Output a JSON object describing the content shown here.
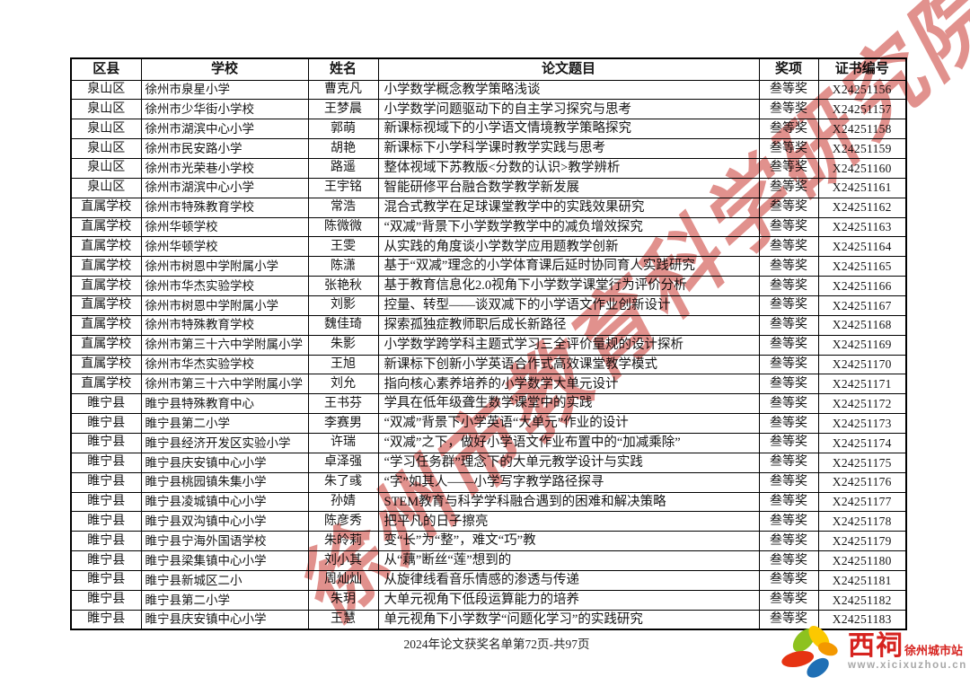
{
  "page": {
    "footer": "2024年论文获奖名单第72页-共97页"
  },
  "watermark": {
    "text": "徐州市教育科学研究院",
    "color": "#c4231c"
  },
  "logo": {
    "brand": "西祠",
    "site": "徐州城市站",
    "url": "www.xicixuzhou.cn",
    "petal_colors": [
      "#8dc21f",
      "#fcc800",
      "#f39800",
      "#e63312",
      "#1f6fb5"
    ]
  },
  "table": {
    "columns": [
      {
        "key": "district",
        "label": "区县"
      },
      {
        "key": "school",
        "label": "学校"
      },
      {
        "key": "name",
        "label": "姓名"
      },
      {
        "key": "title",
        "label": "论文题目"
      },
      {
        "key": "award",
        "label": "奖项"
      },
      {
        "key": "cert",
        "label": "证书编号"
      }
    ],
    "rows": [
      {
        "district": "泉山区",
        "school": "徐州市泉星小学",
        "name": "曹克凡",
        "title": "小学数学概念教学策略浅谈",
        "award": "叁等奖",
        "cert": "X24251156"
      },
      {
        "district": "泉山区",
        "school": "徐州市少华街小学校",
        "name": "王梦晨",
        "title": "小学数学问题驱动下的自主学习探究与思考",
        "award": "叁等奖",
        "cert": "X24251157"
      },
      {
        "district": "泉山区",
        "school": "徐州市湖滨中心小学",
        "name": "郭萌",
        "title": "新课标视域下的小学语文情境教学策略探究",
        "award": "叁等奖",
        "cert": "X24251158"
      },
      {
        "district": "泉山区",
        "school": "徐州市民安路小学",
        "name": "胡艳",
        "title": "新课标下小学科学课时教学实践与思考",
        "award": "叁等奖",
        "cert": "X24251159"
      },
      {
        "district": "泉山区",
        "school": "徐州市光荣巷小学校",
        "name": "路遥",
        "title": "整体视域下苏教版<分数的认识>教学辨析",
        "award": "叁等奖",
        "cert": "X24251160"
      },
      {
        "district": "泉山区",
        "school": "徐州市湖滨中心小学",
        "name": "王宇铭",
        "title": "智能研修平台融合数学教学新发展",
        "award": "叁等奖",
        "cert": "X24251161"
      },
      {
        "district": "直属学校",
        "school": "徐州市特殊教育学校",
        "name": "常浩",
        "title": "混合式教学在足球课堂教学中的实践效果研究",
        "award": "叁等奖",
        "cert": "X24251162"
      },
      {
        "district": "直属学校",
        "school": "徐州华顿学校",
        "name": "陈微微",
        "title": "“双减”背景下小学数学教学中的减负增效探究",
        "award": "叁等奖",
        "cert": "X24251163"
      },
      {
        "district": "直属学校",
        "school": "徐州华顿学校",
        "name": "王雯",
        "title": "从实践的角度谈小学数学应用题教学创新",
        "award": "叁等奖",
        "cert": "X24251164"
      },
      {
        "district": "直属学校",
        "school": "徐州市树恩中学附属小学",
        "name": "陈潇",
        "title": "基于“双减”理念的小学体育课后延时协同育人实践研究",
        "award": "叁等奖",
        "cert": "X24251165"
      },
      {
        "district": "直属学校",
        "school": "徐州市华杰实验学校",
        "name": "张艳秋",
        "title": "基于教育信息化2.0视角下小学数学课堂行为评价分析",
        "award": "叁等奖",
        "cert": "X24251166"
      },
      {
        "district": "直属学校",
        "school": "徐州市树恩中学附属小学",
        "name": "刘影",
        "title": "控量、转型——谈双减下的小学语文作业创新设计",
        "award": "叁等奖",
        "cert": "X24251167"
      },
      {
        "district": "直属学校",
        "school": "徐州市特殊教育学校",
        "name": "魏佳琦",
        "title": "探索孤独症教师职后成长新路径",
        "award": "叁等奖",
        "cert": "X24251168"
      },
      {
        "district": "直属学校",
        "school": "徐州市第三十六中学附属小学",
        "name": "朱影",
        "title": "小学数学跨学科主题式学习三全评价量规的设计探析",
        "award": "叁等奖",
        "cert": "X24251169"
      },
      {
        "district": "直属学校",
        "school": "徐州市华杰实验学校",
        "name": "王旭",
        "title": "新课标下创新小学英语合作式高效课堂教学模式",
        "award": "叁等奖",
        "cert": "X24251170"
      },
      {
        "district": "直属学校",
        "school": "徐州市第三十六中学附属小学",
        "name": "刘允",
        "title": "指向核心素养培养的小学数学大单元设计",
        "award": "叁等奖",
        "cert": "X24251171"
      },
      {
        "district": "睢宁县",
        "school": "睢宁县特殊教育中心",
        "name": "王书芬",
        "title": "学具在低年级聋生数学课堂中的实践",
        "award": "叁等奖",
        "cert": "X24251172"
      },
      {
        "district": "睢宁县",
        "school": "睢宁县第二小学",
        "name": "李赛男",
        "title": "“双减”背景下小学英语“大单元”作业的设计",
        "award": "叁等奖",
        "cert": "X24251173"
      },
      {
        "district": "睢宁县",
        "school": "睢宁县经济开发区实验小学",
        "name": "许瑞",
        "title": "“双减”之下，做好小学语文作业布置中的“加减乘除”",
        "award": "叁等奖",
        "cert": "X24251174"
      },
      {
        "district": "睢宁县",
        "school": "睢宁县庆安镇中心小学",
        "name": "卓泽强",
        "title": "“学习任务群”理念下的大单元教学设计与实践",
        "award": "叁等奖",
        "cert": "X24251175"
      },
      {
        "district": "睢宁县",
        "school": "睢宁县桃园镇朱集小学",
        "name": "朱了彧",
        "title": "“字”如其人——小学写字教学路径探寻",
        "award": "叁等奖",
        "cert": "X24251176"
      },
      {
        "district": "睢宁县",
        "school": "睢宁县凌城镇中心小学",
        "name": "孙婧",
        "title": "STEM教育与科学学科融合遇到的困难和解决策略",
        "award": "叁等奖",
        "cert": "X24251177"
      },
      {
        "district": "睢宁县",
        "school": "睢宁县双沟镇中心小学",
        "name": "陈彦秀",
        "title": "把平凡的日子擦亮",
        "award": "叁等奖",
        "cert": "X24251178"
      },
      {
        "district": "睢宁县",
        "school": "睢宁县宁海外国语学校",
        "name": "朱皊莉",
        "title": "变“长”为“整”，难文“巧”教",
        "award": "叁等奖",
        "cert": "X24251179"
      },
      {
        "district": "睢宁县",
        "school": "睢宁县梁集镇中心小学",
        "name": "刘小其",
        "title": "从“藕”断丝“莲”想到的",
        "award": "叁等奖",
        "cert": "X24251180"
      },
      {
        "district": "睢宁县",
        "school": "睢宁县新城区二小",
        "name": "周灿灿",
        "title": "从旋律线看音乐情感的渗透与传递",
        "award": "叁等奖",
        "cert": "X24251181"
      },
      {
        "district": "睢宁县",
        "school": "睢宁县第二小学",
        "name": "朱玥",
        "title": "大单元视角下低段运算能力的培养",
        "award": "叁等奖",
        "cert": "X24251182"
      },
      {
        "district": "睢宁县",
        "school": "睢宁县庆安镇中心小学",
        "name": "王慧",
        "title": "单元视角下小学数学“问题化学习”的实践研究",
        "award": "叁等奖",
        "cert": "X24251183"
      }
    ]
  }
}
